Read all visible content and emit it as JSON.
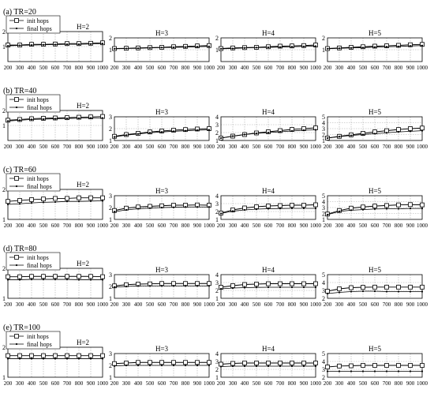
{
  "figure": {
    "legend": {
      "init_label": "init hops",
      "final_label": "final hops"
    }
  },
  "chart_data": [
    {
      "type": "line",
      "row": 0,
      "col": 0,
      "row_label": "(a) TR=20",
      "title": "H=2",
      "categories": [
        200,
        300,
        400,
        500,
        600,
        700,
        800,
        900,
        1000
      ],
      "ylim": [
        0,
        2
      ],
      "yticks": [
        1,
        2
      ],
      "series": [
        {
          "name": "init hops",
          "marker": "square",
          "values": [
            1.1,
            1.1,
            1.15,
            1.15,
            1.17,
            1.2,
            1.2,
            1.22,
            1.25
          ]
        },
        {
          "name": "final hops",
          "marker": "dot",
          "values": [
            1.05,
            1.08,
            1.1,
            1.12,
            1.13,
            1.15,
            1.15,
            1.17,
            1.2
          ]
        }
      ]
    },
    {
      "type": "line",
      "row": 0,
      "col": 1,
      "title": "H=3",
      "categories": [
        200,
        300,
        400,
        500,
        600,
        700,
        800,
        900,
        1000
      ],
      "ylim": [
        0,
        2
      ],
      "yticks": [
        1,
        2
      ],
      "series": [
        {
          "name": "init hops",
          "marker": "square",
          "values": [
            1.1,
            1.12,
            1.15,
            1.18,
            1.2,
            1.25,
            1.28,
            1.32,
            1.35
          ]
        },
        {
          "name": "final hops",
          "marker": "dot",
          "values": [
            1.08,
            1.1,
            1.12,
            1.15,
            1.18,
            1.2,
            1.22,
            1.25,
            1.28
          ]
        }
      ]
    },
    {
      "type": "line",
      "row": 0,
      "col": 2,
      "title": "H=4",
      "categories": [
        200,
        300,
        400,
        500,
        600,
        700,
        800,
        900,
        1000
      ],
      "ylim": [
        0,
        2
      ],
      "yticks": [
        1,
        2
      ],
      "series": [
        {
          "name": "init hops",
          "marker": "square",
          "values": [
            1.1,
            1.15,
            1.18,
            1.2,
            1.25,
            1.3,
            1.32,
            1.35,
            1.4
          ]
        },
        {
          "name": "final hops",
          "marker": "dot",
          "values": [
            1.08,
            1.1,
            1.15,
            1.18,
            1.2,
            1.22,
            1.25,
            1.28,
            1.3
          ]
        }
      ]
    },
    {
      "type": "line",
      "row": 0,
      "col": 3,
      "title": "H=5",
      "categories": [
        200,
        300,
        400,
        500,
        600,
        700,
        800,
        900,
        1000
      ],
      "ylim": [
        0,
        2
      ],
      "yticks": [
        1,
        2
      ],
      "series": [
        {
          "name": "init hops",
          "marker": "square",
          "values": [
            1.1,
            1.15,
            1.2,
            1.25,
            1.3,
            1.33,
            1.37,
            1.42,
            1.45
          ]
        },
        {
          "name": "final hops",
          "marker": "dot",
          "values": [
            1.08,
            1.12,
            1.15,
            1.18,
            1.22,
            1.25,
            1.28,
            1.32,
            1.35
          ]
        }
      ]
    },
    {
      "type": "line",
      "row": 1,
      "col": 0,
      "row_label": "(b) TR=40",
      "title": "H=2",
      "categories": [
        200,
        300,
        400,
        500,
        600,
        700,
        800,
        900,
        1000
      ],
      "ylim": [
        0,
        2
      ],
      "yticks": [
        1,
        2
      ],
      "series": [
        {
          "name": "init hops",
          "marker": "square",
          "values": [
            1.35,
            1.4,
            1.45,
            1.48,
            1.5,
            1.52,
            1.55,
            1.57,
            1.6
          ]
        },
        {
          "name": "final hops",
          "marker": "dot",
          "values": [
            1.3,
            1.35,
            1.4,
            1.42,
            1.45,
            1.47,
            1.48,
            1.5,
            1.5
          ]
        }
      ]
    },
    {
      "type": "line",
      "row": 1,
      "col": 1,
      "title": "H=3",
      "categories": [
        200,
        300,
        400,
        500,
        600,
        700,
        800,
        900,
        1000
      ],
      "ylim": [
        1,
        3
      ],
      "yticks": [
        1,
        2,
        3
      ],
      "series": [
        {
          "name": "init hops",
          "marker": "square",
          "values": [
            1.35,
            1.5,
            1.6,
            1.72,
            1.8,
            1.87,
            1.92,
            1.97,
            2.0
          ]
        },
        {
          "name": "final hops",
          "marker": "dot",
          "values": [
            1.3,
            1.45,
            1.55,
            1.65,
            1.72,
            1.78,
            1.82,
            1.87,
            1.9
          ]
        }
      ]
    },
    {
      "type": "line",
      "row": 1,
      "col": 2,
      "title": "H=4",
      "categories": [
        200,
        300,
        400,
        500,
        600,
        700,
        800,
        900,
        1000
      ],
      "ylim": [
        1,
        4
      ],
      "yticks": [
        1,
        2,
        3,
        4
      ],
      "series": [
        {
          "name": "init hops",
          "marker": "square",
          "values": [
            1.3,
            1.55,
            1.75,
            1.95,
            2.1,
            2.25,
            2.4,
            2.5,
            2.6
          ]
        },
        {
          "name": "final hops",
          "marker": "dot",
          "values": [
            1.3,
            1.55,
            1.75,
            1.9,
            2.0,
            2.1,
            2.2,
            2.3,
            2.35
          ]
        }
      ]
    },
    {
      "type": "line",
      "row": 1,
      "col": 3,
      "title": "H=5",
      "categories": [
        200,
        300,
        400,
        500,
        600,
        700,
        800,
        900,
        1000
      ],
      "ylim": [
        1,
        5
      ],
      "yticks": [
        1,
        2,
        3,
        4,
        5
      ],
      "series": [
        {
          "name": "init hops",
          "marker": "square",
          "values": [
            1.4,
            1.7,
            1.95,
            2.2,
            2.45,
            2.65,
            2.85,
            3.0,
            3.1
          ]
        },
        {
          "name": "final hops",
          "marker": "dot",
          "values": [
            1.4,
            1.65,
            1.85,
            2.0,
            2.15,
            2.3,
            2.45,
            2.55,
            2.65
          ]
        }
      ]
    },
    {
      "type": "line",
      "row": 2,
      "col": 0,
      "row_label": "(c) TR=60",
      "title": "H=2",
      "categories": [
        200,
        300,
        400,
        500,
        600,
        700,
        800,
        900,
        1000
      ],
      "ylim": [
        1,
        2
      ],
      "yticks": [
        1,
        2
      ],
      "series": [
        {
          "name": "init hops",
          "marker": "square",
          "values": [
            1.6,
            1.63,
            1.66,
            1.68,
            1.7,
            1.7,
            1.72,
            1.72,
            1.72
          ]
        },
        {
          "name": "final hops",
          "marker": "dot",
          "values": [
            1.5,
            1.52,
            1.55,
            1.57,
            1.58,
            1.6,
            1.6,
            1.61,
            1.62
          ]
        }
      ]
    },
    {
      "type": "line",
      "row": 2,
      "col": 1,
      "title": "H=3",
      "categories": [
        200,
        300,
        400,
        500,
        600,
        700,
        800,
        900,
        1000
      ],
      "ylim": [
        1,
        3
      ],
      "yticks": [
        1,
        2,
        3
      ],
      "series": [
        {
          "name": "init hops",
          "marker": "square",
          "values": [
            1.75,
            1.95,
            2.05,
            2.1,
            2.15,
            2.2,
            2.2,
            2.22,
            2.2
          ]
        },
        {
          "name": "final hops",
          "marker": "dot",
          "values": [
            1.65,
            1.8,
            1.9,
            1.95,
            2.0,
            2.02,
            2.05,
            2.05,
            2.05
          ]
        }
      ]
    },
    {
      "type": "line",
      "row": 2,
      "col": 2,
      "title": "H=4",
      "categories": [
        200,
        300,
        400,
        500,
        600,
        700,
        800,
        900,
        1000
      ],
      "ylim": [
        1,
        4
      ],
      "yticks": [
        1,
        2,
        3,
        4
      ],
      "series": [
        {
          "name": "init hops",
          "marker": "square",
          "values": [
            1.8,
            2.2,
            2.45,
            2.6,
            2.7,
            2.75,
            2.8,
            2.8,
            2.85
          ]
        },
        {
          "name": "final hops",
          "marker": "dot",
          "values": [
            1.75,
            2.05,
            2.2,
            2.3,
            2.35,
            2.38,
            2.4,
            2.4,
            2.4
          ]
        }
      ]
    },
    {
      "type": "line",
      "row": 2,
      "col": 3,
      "title": "H=5",
      "categories": [
        200,
        300,
        400,
        500,
        600,
        700,
        800,
        900,
        1000
      ],
      "ylim": [
        1,
        5
      ],
      "yticks": [
        1,
        2,
        3,
        4,
        5
      ],
      "series": [
        {
          "name": "init hops",
          "marker": "square",
          "values": [
            1.9,
            2.5,
            2.9,
            3.1,
            3.25,
            3.35,
            3.45,
            3.5,
            3.45
          ]
        },
        {
          "name": "final hops",
          "marker": "dot",
          "values": [
            1.8,
            2.35,
            2.55,
            2.65,
            2.75,
            2.8,
            2.8,
            2.85,
            2.85
          ]
        }
      ]
    },
    {
      "type": "line",
      "row": 3,
      "col": 0,
      "row_label": "(d) TR=80",
      "title": "H=2",
      "categories": [
        200,
        300,
        400,
        500,
        600,
        700,
        800,
        900,
        1000
      ],
      "ylim": [
        1,
        2
      ],
      "yticks": [
        1,
        2
      ],
      "series": [
        {
          "name": "init hops",
          "marker": "square",
          "values": [
            1.72,
            1.72,
            1.73,
            1.73,
            1.73,
            1.73,
            1.73,
            1.73,
            1.72
          ]
        },
        {
          "name": "final hops",
          "marker": "dot",
          "values": [
            1.62,
            1.62,
            1.63,
            1.63,
            1.63,
            1.63,
            1.62,
            1.62,
            1.62
          ]
        }
      ]
    },
    {
      "type": "line",
      "row": 3,
      "col": 1,
      "title": "H=3",
      "categories": [
        200,
        300,
        400,
        500,
        600,
        700,
        800,
        900,
        1000
      ],
      "ylim": [
        1,
        3
      ],
      "yticks": [
        1,
        2,
        3
      ],
      "series": [
        {
          "name": "init hops",
          "marker": "square",
          "values": [
            2.05,
            2.15,
            2.2,
            2.22,
            2.25,
            2.25,
            2.25,
            2.25,
            2.25
          ]
        },
        {
          "name": "final hops",
          "marker": "dot",
          "values": [
            1.95,
            2.0,
            2.05,
            2.05,
            2.05,
            2.05,
            2.05,
            2.05,
            2.05
          ]
        }
      ]
    },
    {
      "type": "line",
      "row": 3,
      "col": 2,
      "title": "H=4",
      "categories": [
        200,
        300,
        400,
        500,
        600,
        700,
        800,
        900,
        1000
      ],
      "ylim": [
        1,
        4
      ],
      "yticks": [
        1,
        2,
        3,
        4
      ],
      "series": [
        {
          "name": "init hops",
          "marker": "square",
          "values": [
            2.4,
            2.6,
            2.75,
            2.8,
            2.85,
            2.85,
            2.85,
            2.85,
            2.85
          ]
        },
        {
          "name": "final hops",
          "marker": "dot",
          "values": [
            2.2,
            2.3,
            2.35,
            2.38,
            2.4,
            2.4,
            2.4,
            2.4,
            2.4
          ]
        }
      ]
    },
    {
      "type": "line",
      "row": 3,
      "col": 3,
      "title": "H=5",
      "categories": [
        200,
        300,
        400,
        500,
        600,
        700,
        800,
        900,
        1000
      ],
      "ylim": [
        2,
        5
      ],
      "yticks": [
        2,
        3,
        4,
        5
      ],
      "series": [
        {
          "name": "init hops",
          "marker": "square",
          "values": [
            2.9,
            3.2,
            3.35,
            3.4,
            3.42,
            3.42,
            3.42,
            3.42,
            3.42
          ]
        },
        {
          "name": "final hops",
          "marker": "dot",
          "values": [
            2.6,
            2.75,
            2.85,
            2.9,
            2.9,
            2.85,
            2.85,
            2.85,
            2.85
          ]
        }
      ]
    },
    {
      "type": "line",
      "row": 4,
      "col": 0,
      "row_label": "(e) TR=100",
      "title": "H=2",
      "categories": [
        200,
        300,
        400,
        500,
        600,
        700,
        800,
        900,
        1000
      ],
      "ylim": [
        1,
        2
      ],
      "yticks": [
        1,
        2
      ],
      "series": [
        {
          "name": "init hops",
          "marker": "square",
          "values": [
            1.72,
            1.72,
            1.72,
            1.72,
            1.72,
            1.72,
            1.72,
            1.72,
            1.72
          ]
        },
        {
          "name": "final hops",
          "marker": "dot",
          "values": [
            1.62,
            1.62,
            1.62,
            1.62,
            1.62,
            1.62,
            1.62,
            1.62,
            1.62
          ]
        }
      ]
    },
    {
      "type": "line",
      "row": 4,
      "col": 1,
      "title": "H=3",
      "categories": [
        200,
        300,
        400,
        500,
        600,
        700,
        800,
        900,
        1000
      ],
      "ylim": [
        1,
        3
      ],
      "yticks": [
        1,
        2,
        3
      ],
      "series": [
        {
          "name": "init hops",
          "marker": "square",
          "values": [
            2.15,
            2.2,
            2.25,
            2.25,
            2.25,
            2.25,
            2.25,
            2.25,
            2.25
          ]
        },
        {
          "name": "final hops",
          "marker": "dot",
          "values": [
            1.95,
            2.0,
            2.0,
            2.0,
            2.0,
            2.0,
            2.0,
            2.0,
            2.0
          ]
        }
      ]
    },
    {
      "type": "line",
      "row": 4,
      "col": 2,
      "title": "H=4",
      "categories": [
        200,
        300,
        400,
        500,
        600,
        700,
        800,
        900,
        1000
      ],
      "ylim": [
        1,
        4
      ],
      "yticks": [
        1,
        2,
        3,
        4
      ],
      "series": [
        {
          "name": "init hops",
          "marker": "square",
          "values": [
            2.65,
            2.75,
            2.8,
            2.8,
            2.8,
            2.8,
            2.8,
            2.8,
            2.8
          ]
        },
        {
          "name": "final hops",
          "marker": "dot",
          "values": [
            2.35,
            2.4,
            2.4,
            2.4,
            2.4,
            2.4,
            2.4,
            2.4,
            2.4
          ]
        }
      ]
    },
    {
      "type": "line",
      "row": 4,
      "col": 3,
      "title": "H=5",
      "categories": [
        200,
        300,
        400,
        500,
        600,
        700,
        800,
        900,
        1000
      ],
      "ylim": [
        2,
        5
      ],
      "yticks": [
        2,
        3,
        4,
        5
      ],
      "series": [
        {
          "name": "init hops",
          "marker": "square",
          "values": [
            3.3,
            3.42,
            3.45,
            3.5,
            3.5,
            3.5,
            3.5,
            3.5,
            3.5
          ]
        },
        {
          "name": "final hops",
          "marker": "dot",
          "values": [
            2.75,
            2.75,
            2.75,
            2.75,
            2.75,
            2.75,
            2.75,
            2.75,
            2.75
          ]
        }
      ]
    }
  ]
}
